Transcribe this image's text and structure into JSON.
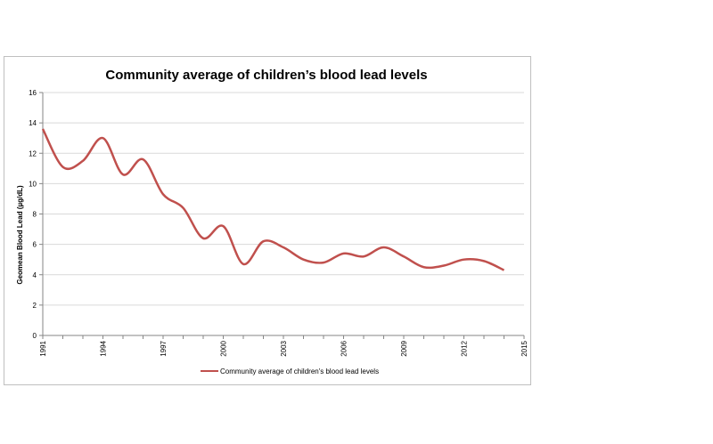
{
  "chart_data": {
    "type": "line",
    "title": "Community average of children’s blood lead levels",
    "ylabel": "Geomean Blood Lead  (µg/dL)",
    "xlabel": "",
    "xlim": [
      1991,
      2015
    ],
    "ylim": [
      0,
      16
    ],
    "x_ticks": [
      "1991",
      "1994",
      "1997",
      "2000",
      "2003",
      "2006",
      "2009",
      "2012",
      "2015"
    ],
    "y_ticks": [
      "0",
      "2",
      "4",
      "6",
      "8",
      "10",
      "12",
      "14",
      "16"
    ],
    "grid": true,
    "legend_position": "bottom",
    "series": [
      {
        "name": "Community average of children's blood lead levels",
        "color": "#c0504d",
        "x": [
          1991,
          1992,
          1993,
          1994,
          1995,
          1996,
          1997,
          1998,
          1999,
          2000,
          2001,
          2002,
          2003,
          2004,
          2005,
          2006,
          2007,
          2008,
          2009,
          2010,
          2011,
          2012,
          2013,
          2014
        ],
        "y": [
          13.6,
          11.1,
          11.5,
          13.0,
          10.6,
          11.6,
          9.3,
          8.4,
          6.4,
          7.2,
          4.7,
          6.2,
          5.8,
          5.0,
          4.8,
          5.4,
          5.2,
          5.8,
          5.2,
          4.5,
          4.6,
          5.0,
          4.9,
          4.3
        ]
      }
    ]
  }
}
